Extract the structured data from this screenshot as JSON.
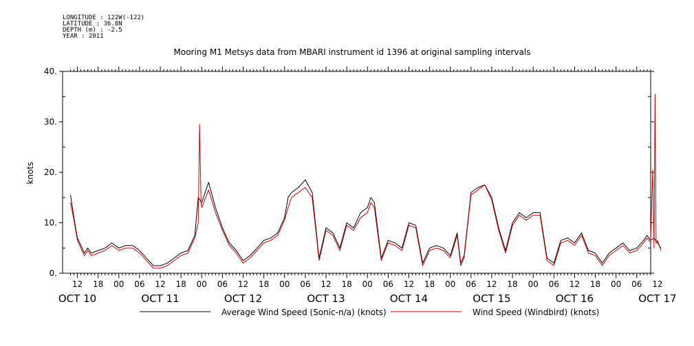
{
  "header": {
    "longitude": "LONGITUDE : 122W(-122)",
    "latitude": "LATITUDE : 36.8N",
    "depth": "DEPTH (m) : -2.5",
    "year": "YEAR : 2011"
  },
  "chart_data": {
    "type": "line",
    "title": "Mooring M1 Metsys data from MBARI instrument id 1396 at original sampling intervals",
    "ylabel": "knots",
    "xlabel": "",
    "ylim": [
      0,
      40
    ],
    "yticks": [
      "0.",
      "10.",
      "20.",
      "30.",
      "40."
    ],
    "xlim_hours": [
      0,
      174
    ],
    "hour_ticks": [
      {
        "h": 2,
        "label": "12"
      },
      {
        "h": 8,
        "label": "18"
      },
      {
        "h": 14,
        "label": "00"
      },
      {
        "h": 20,
        "label": "06"
      },
      {
        "h": 26,
        "label": "12"
      },
      {
        "h": 32,
        "label": "18"
      },
      {
        "h": 38,
        "label": "00"
      },
      {
        "h": 44,
        "label": "06"
      },
      {
        "h": 50,
        "label": "12"
      },
      {
        "h": 56,
        "label": "18"
      },
      {
        "h": 62,
        "label": "00"
      },
      {
        "h": 68,
        "label": "06"
      },
      {
        "h": 74,
        "label": "12"
      },
      {
        "h": 80,
        "label": "18"
      },
      {
        "h": 86,
        "label": "00"
      },
      {
        "h": 92,
        "label": "06"
      },
      {
        "h": 98,
        "label": "12"
      },
      {
        "h": 104,
        "label": "18"
      },
      {
        "h": 110,
        "label": "00"
      },
      {
        "h": 116,
        "label": "06"
      },
      {
        "h": 122,
        "label": "12"
      },
      {
        "h": 128,
        "label": "18"
      },
      {
        "h": 134,
        "label": "00"
      },
      {
        "h": 140,
        "label": "06"
      },
      {
        "h": 146,
        "label": "12"
      },
      {
        "h": 152,
        "label": "18"
      },
      {
        "h": 158,
        "label": "00"
      },
      {
        "h": 164,
        "label": "06"
      },
      {
        "h": 170,
        "label": "12"
      }
    ],
    "day_labels": [
      {
        "h": 2,
        "label": "OCT 10"
      },
      {
        "h": 26,
        "label": "OCT 11"
      },
      {
        "h": 50,
        "label": "OCT 12"
      },
      {
        "h": 74,
        "label": "OCT 13"
      },
      {
        "h": 98,
        "label": "OCT 14"
      },
      {
        "h": 122,
        "label": "OCT 15"
      },
      {
        "h": 146,
        "label": "OCT 16"
      },
      {
        "h": 170,
        "label": "OCT 17"
      }
    ],
    "series": [
      {
        "name": "Average Wind Speed (Sonic-n/a) (knots)",
        "color": "#000000",
        "x": [
          0,
          1,
          2,
          3,
          4,
          5,
          6,
          8,
          10,
          12,
          14,
          16,
          18,
          20,
          22,
          24,
          26,
          28,
          30,
          32,
          34,
          36,
          37,
          38,
          40,
          42,
          44,
          46,
          48,
          50,
          52,
          54,
          56,
          58,
          60,
          62,
          63,
          64,
          66,
          68,
          70,
          72,
          74,
          76,
          78,
          80,
          82,
          84,
          86,
          87,
          88,
          90,
          92,
          94,
          96,
          98,
          100,
          102,
          104,
          106,
          108,
          110,
          112,
          113,
          114,
          116,
          118,
          120,
          122,
          124,
          126,
          128,
          130,
          132,
          134,
          136,
          138,
          140,
          142,
          144,
          146,
          148,
          150,
          152,
          154,
          156,
          158,
          160,
          162,
          164,
          166,
          167,
          168,
          169,
          170,
          171
        ],
        "y": [
          15.5,
          11,
          7,
          5.5,
          4,
          5,
          4,
          4.5,
          5,
          6,
          5,
          5.5,
          5.5,
          4.5,
          3,
          1.5,
          1.5,
          2,
          3,
          4,
          4.5,
          7.5,
          15,
          14,
          18,
          13,
          9,
          6,
          4.5,
          2.5,
          3.5,
          5,
          6.5,
          7,
          8,
          11,
          15,
          16,
          17,
          18.5,
          16,
          3,
          9,
          8,
          5,
          10,
          9,
          12,
          13,
          15,
          14,
          3,
          6.5,
          6,
          5,
          10,
          9.5,
          2,
          5,
          5.5,
          5,
          3.5,
          8,
          2,
          3.5,
          16,
          17,
          17.5,
          15,
          9,
          4.5,
          10,
          12,
          11,
          12,
          12,
          3,
          2,
          6.5,
          7,
          6,
          8,
          4.5,
          4,
          2,
          4,
          5,
          6,
          4.5,
          5,
          6.5,
          7.5,
          6.5,
          7,
          6,
          5
        ]
      },
      {
        "name": "Wind Speed (Windbird) (knots)",
        "color": "#cc0000",
        "x": [
          0,
          1,
          2,
          3,
          4,
          5,
          6,
          8,
          10,
          12,
          14,
          16,
          18,
          20,
          22,
          24,
          26,
          28,
          30,
          32,
          34,
          36,
          37,
          37.4,
          37.8,
          38,
          40,
          42,
          44,
          46,
          48,
          50,
          52,
          54,
          56,
          58,
          60,
          62,
          63,
          64,
          66,
          68,
          70,
          72,
          74,
          76,
          78,
          80,
          82,
          84,
          86,
          87,
          88,
          90,
          92,
          94,
          96,
          98,
          100,
          102,
          104,
          106,
          108,
          110,
          112,
          113,
          114,
          116,
          118,
          120,
          122,
          124,
          126,
          128,
          130,
          132,
          134,
          136,
          138,
          140,
          142,
          144,
          146,
          148,
          150,
          152,
          154,
          156,
          158,
          160,
          162,
          164,
          166,
          167,
          168,
          168.6,
          169,
          169.3,
          169.6,
          170,
          171
        ],
        "y": [
          14,
          10.5,
          6.5,
          5,
          3.5,
          4.5,
          3.5,
          4,
          4.5,
          5.5,
          4.5,
          5,
          5,
          4,
          2.5,
          1,
          1,
          1.5,
          2.5,
          3.5,
          4,
          7,
          10,
          29.5,
          14,
          13,
          16.5,
          12,
          8.5,
          5.5,
          4,
          2,
          3,
          4.5,
          6,
          6.5,
          7.5,
          10.5,
          13,
          15,
          16,
          17,
          15,
          2.5,
          8.5,
          7.5,
          4.5,
          9.5,
          8.5,
          11,
          12,
          14,
          13,
          2.5,
          6,
          5.5,
          4.5,
          9.5,
          9,
          1.5,
          4.5,
          5,
          4.5,
          3,
          7.5,
          1.5,
          3,
          15.5,
          16.5,
          17.5,
          14.5,
          8.5,
          4,
          9.5,
          11.5,
          10.5,
          11.5,
          11.5,
          2.5,
          1.5,
          6,
          6.5,
          5.5,
          7.5,
          4,
          3.5,
          1.5,
          3.5,
          4.5,
          5.5,
          4,
          4.5,
          6,
          7,
          6,
          20.5,
          5,
          35.5,
          6,
          6.5,
          4.5
        ]
      }
    ]
  }
}
